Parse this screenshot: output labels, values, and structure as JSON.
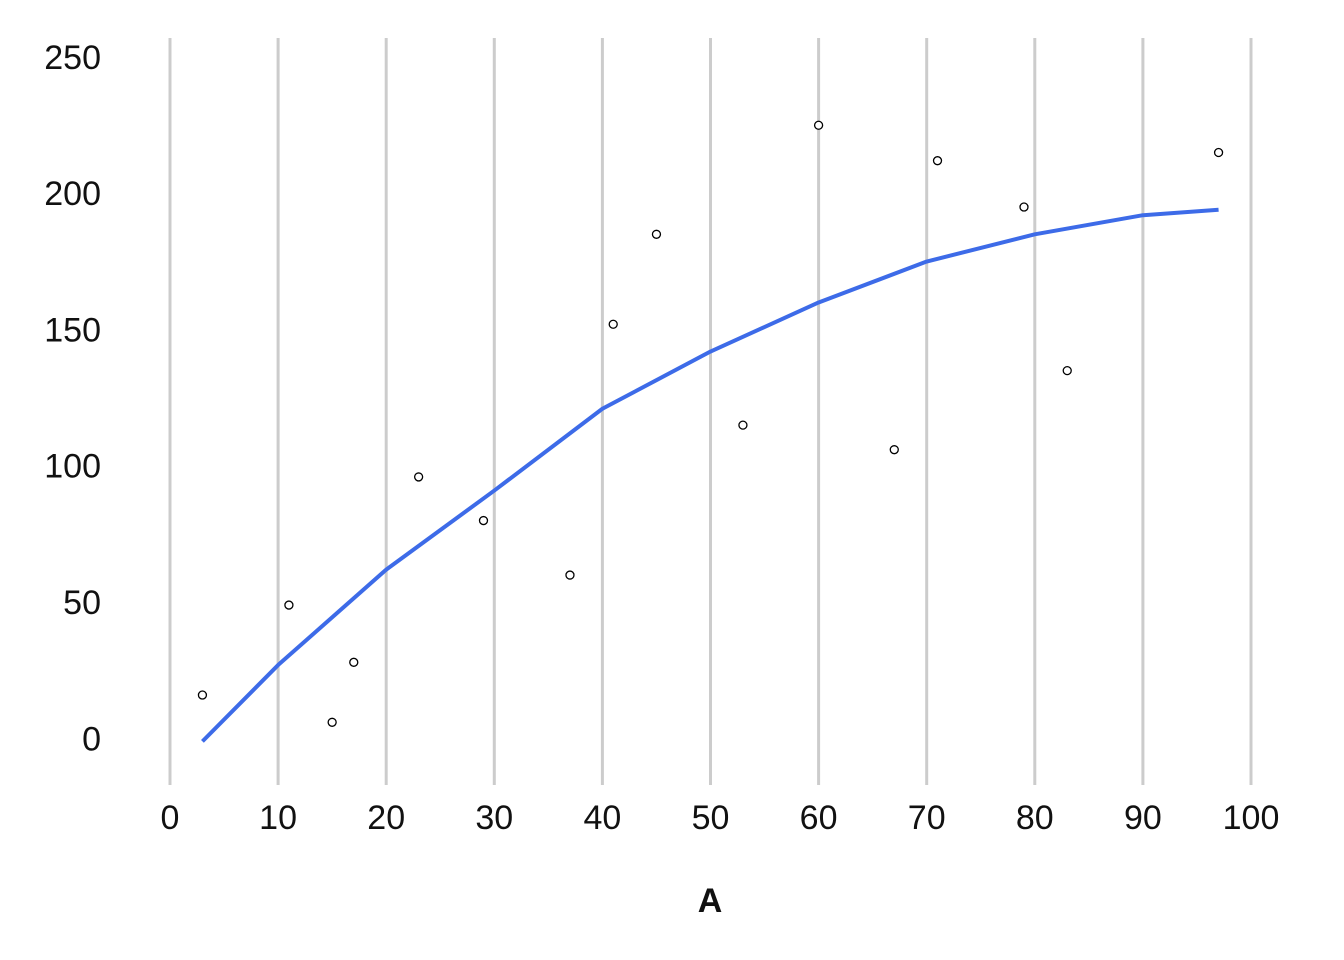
{
  "chart_data": {
    "type": "scatter",
    "x_label": "A",
    "x": [
      3,
      11,
      15,
      17,
      23,
      29,
      37,
      41,
      45,
      53,
      60,
      67,
      71,
      79,
      83,
      97
    ],
    "values": [
      17,
      50,
      7,
      29,
      97,
      81,
      61,
      153,
      186,
      116,
      226,
      107,
      213,
      196,
      136,
      216
    ],
    "point_color": "#000000",
    "trendline": {
      "color": "#3d6be8",
      "x": [
        3,
        10,
        20,
        30,
        40,
        50,
        60,
        70,
        80,
        90,
        97
      ],
      "values": [
        0,
        28,
        63,
        92,
        122,
        143,
        161,
        176,
        186,
        193,
        195
      ]
    },
    "xlim": [
      0,
      100
    ],
    "xticks": [
      0,
      10,
      20,
      30,
      40,
      50,
      60,
      70,
      80,
      90,
      100
    ],
    "ylim": [
      -16,
      258
    ],
    "yticks": [
      0,
      50,
      100,
      150,
      200,
      250
    ],
    "x_grid": true
  }
}
